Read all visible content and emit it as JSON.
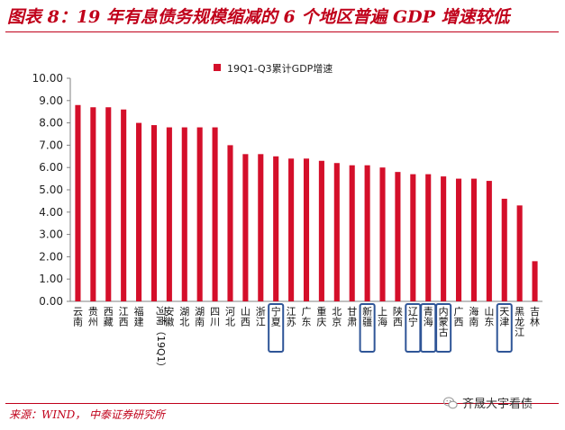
{
  "figure": {
    "title": "图表 8：19 年有息债务规模缩减的 6 个地区普遍 GDP 增速较低",
    "source": "来源：WIND， 中泰证券研究所",
    "watermark": "齐晟大宇看债",
    "watermark_icon": "wechat-logo"
  },
  "colors": {
    "bar": "#d40f2a",
    "accent": "#c0001a",
    "highlight_box": "#2f5597"
  },
  "chart_data": {
    "type": "bar",
    "legend": {
      "label": "19Q1-Q3累计GDP增速",
      "position": "top-center"
    },
    "categories": [
      "云南",
      "贵州",
      "西藏",
      "江西",
      "福建",
      "河南（19Q1）",
      "安徽",
      "湖北",
      "湖南",
      "四川",
      "河北",
      "山西",
      "浙江",
      "宁夏",
      "江苏",
      "广东",
      "重庆",
      "北京",
      "甘肃",
      "新疆",
      "上海",
      "陕西",
      "辽宁",
      "青海",
      "内蒙古",
      "广西",
      "海南",
      "山东",
      "天津",
      "黑龙江",
      "吉林"
    ],
    "values": [
      8.8,
      8.7,
      8.7,
      8.6,
      8.0,
      7.9,
      7.8,
      7.8,
      7.8,
      7.8,
      7.0,
      6.6,
      6.6,
      6.5,
      6.4,
      6.4,
      6.3,
      6.2,
      6.1,
      6.1,
      6.0,
      5.8,
      5.7,
      5.7,
      5.6,
      5.5,
      5.5,
      5.4,
      4.6,
      4.3,
      1.8
    ],
    "highlighted": [
      "宁夏",
      "新疆",
      "辽宁",
      "青海",
      "内蒙古",
      "天津"
    ],
    "y_ticks": [
      "0.00",
      "1.00",
      "2.00",
      "3.00",
      "4.00",
      "5.00",
      "6.00",
      "7.00",
      "8.00",
      "9.00",
      "10.00"
    ],
    "ylim": [
      0,
      10
    ],
    "grid": false
  }
}
